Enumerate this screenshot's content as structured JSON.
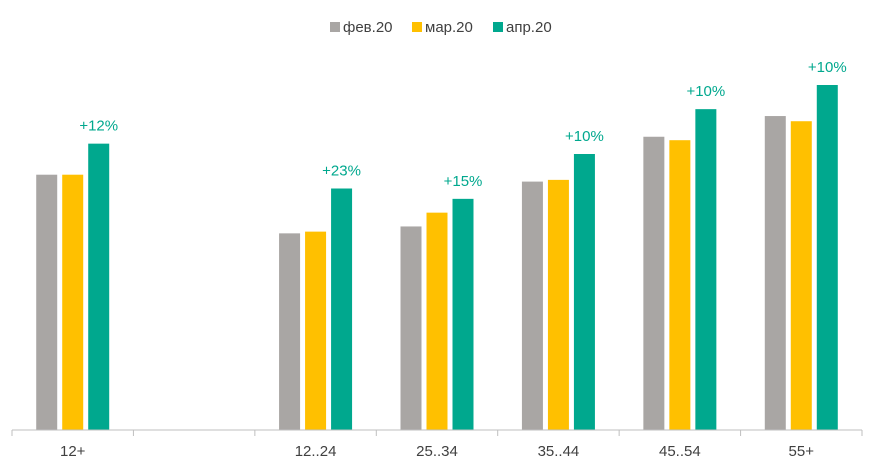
{
  "chart_data": {
    "type": "bar",
    "title": "",
    "xlabel": "",
    "ylabel": "",
    "ylim": [
      0,
      100
    ],
    "grid": false,
    "legend_position": "top-center",
    "categories": [
      "12+",
      "",
      "12..24",
      "25..34",
      "35..44",
      "45..54",
      "55+"
    ],
    "series": [
      {
        "name": "фев.20",
        "color": "#a9a6a4",
        "values": [
          74,
          null,
          57,
          59,
          72,
          85,
          91
        ]
      },
      {
        "name": "мар.20",
        "color": "#ffc000",
        "values": [
          74,
          null,
          57.5,
          63,
          72.5,
          84,
          89.5
        ]
      },
      {
        "name": "апр.20",
        "color": "#00a88e",
        "values": [
          83,
          null,
          70,
          67,
          80,
          93,
          100
        ]
      }
    ],
    "annotations": [
      {
        "category_index": 0,
        "series_index": 2,
        "text": "+12%"
      },
      {
        "category_index": 2,
        "series_index": 2,
        "text": "+23%"
      },
      {
        "category_index": 3,
        "series_index": 2,
        "text": "+15%"
      },
      {
        "category_index": 4,
        "series_index": 2,
        "text": "+10%"
      },
      {
        "category_index": 5,
        "series_index": 2,
        "text": "+10%"
      },
      {
        "category_index": 6,
        "series_index": 2,
        "text": "+10%"
      }
    ]
  }
}
